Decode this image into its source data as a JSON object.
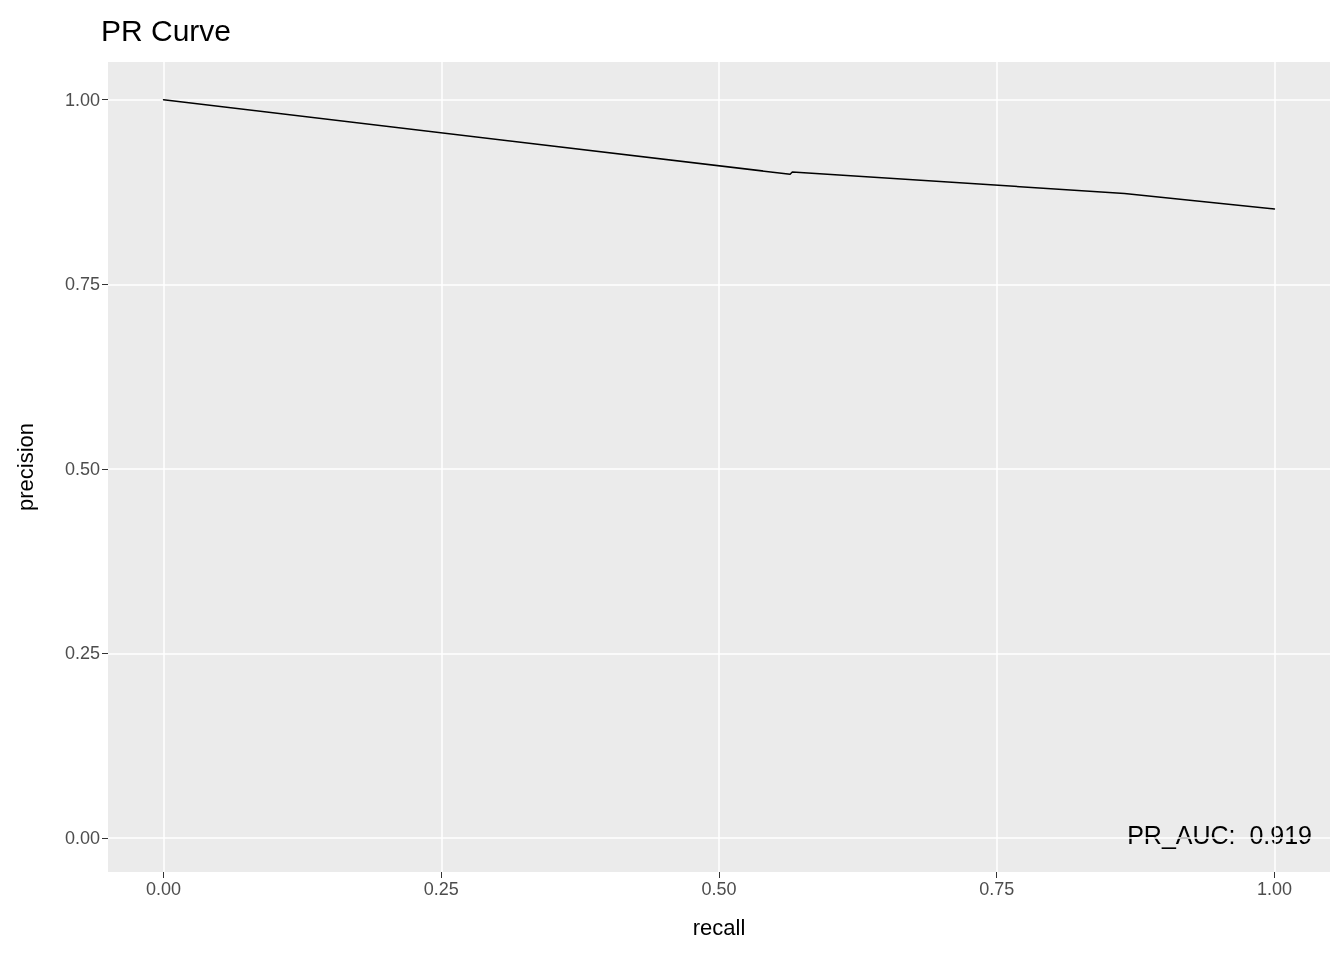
{
  "chart_data": {
    "type": "line",
    "title": "PR Curve",
    "xlabel": "recall",
    "ylabel": "precision",
    "x": [
      0,
      0.564,
      0.566,
      0.865,
      1
    ],
    "series": [
      {
        "color": "#000000",
        "values": [
          1,
          0.899,
          0.902,
          0.873,
          0.852
        ]
      }
    ],
    "xlim": [
      -0.05,
      1.05
    ],
    "ylim": [
      -0.046,
      1.051
    ],
    "xticks": [
      {
        "value": 0,
        "label": "0.00"
      },
      {
        "value": 0.25,
        "label": "0.25"
      },
      {
        "value": 0.5,
        "label": "0.50"
      },
      {
        "value": 0.75,
        "label": "0.75"
      },
      {
        "value": 1,
        "label": "1.00"
      }
    ],
    "yticks": [
      {
        "value": 0,
        "label": "0.00"
      },
      {
        "value": 0.25,
        "label": "0.25"
      },
      {
        "value": 0.5,
        "label": "0.50"
      },
      {
        "value": 0.75,
        "label": "0.75"
      },
      {
        "value": 1,
        "label": "1.00"
      }
    ],
    "annotations": [
      "PR_AUC:  0.919"
    ],
    "grid": true,
    "marker": "none",
    "line_style": "solid"
  }
}
